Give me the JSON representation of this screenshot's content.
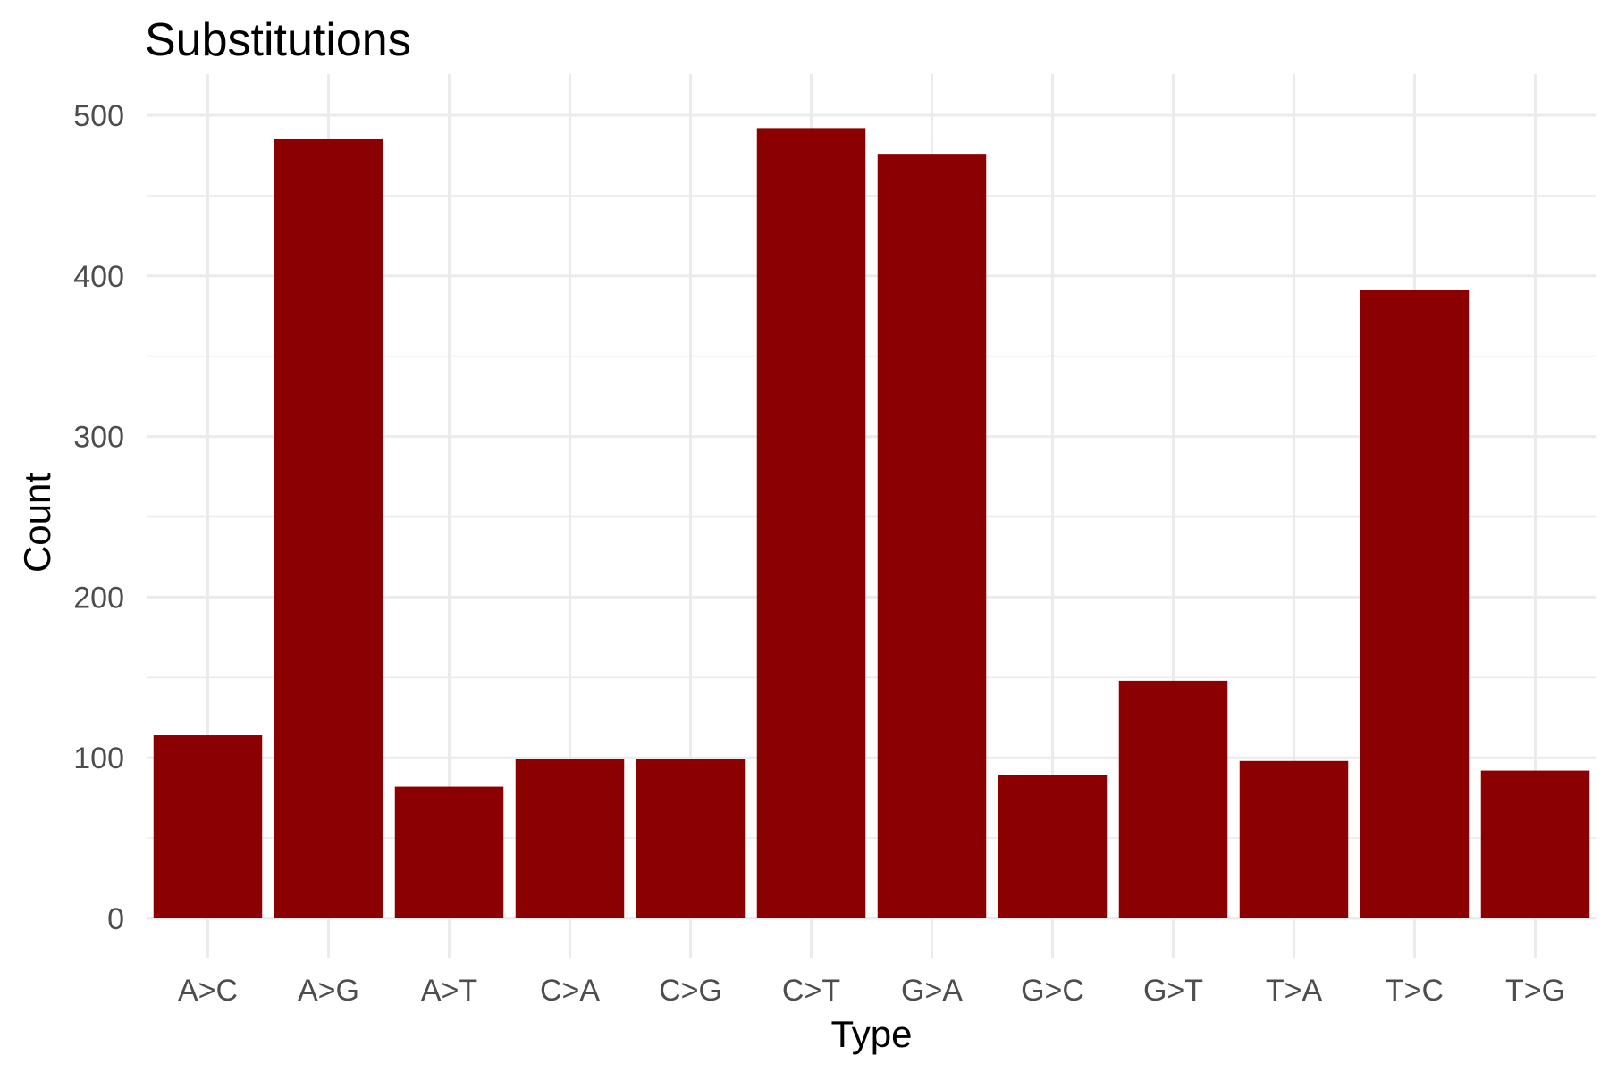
{
  "chart_data": {
    "type": "bar",
    "title": "Substitutions",
    "xlabel": "Type",
    "ylabel": "Count",
    "categories": [
      "A>C",
      "A>G",
      "A>T",
      "C>A",
      "C>G",
      "C>T",
      "G>A",
      "G>C",
      "G>T",
      "T>A",
      "T>C",
      "T>G"
    ],
    "values": [
      114,
      485,
      82,
      99,
      99,
      492,
      476,
      89,
      148,
      98,
      391,
      92
    ],
    "ylim": [
      0,
      510
    ],
    "yticks": [
      0,
      100,
      200,
      300,
      400,
      500
    ],
    "ytick_labels": [
      "0",
      "100",
      "200",
      "300",
      "400",
      "500"
    ],
    "grid": true,
    "legend": "none",
    "bar_color": "#8b0000"
  }
}
